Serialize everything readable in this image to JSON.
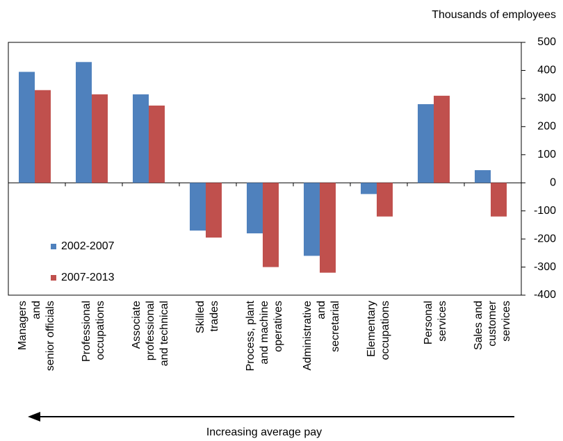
{
  "chart_data": {
    "type": "bar",
    "y_label": "Thousands of employees",
    "x_note": "Increasing average pay",
    "categories": [
      "Managers\nand\nsenior officials",
      "Professional\noccupations",
      "Associate\nprofessional\nand technical",
      "Skilled\ntrades",
      "Process, plant\nand machine\noperatives",
      "Administrative\nand\nsecretarial",
      "Elementary\noccupations",
      "Personal\nservices",
      "Sales and\ncustomer\nservices"
    ],
    "series": [
      {
        "name": "2002-2007",
        "color": "#4f81bd",
        "values": [
          395,
          430,
          315,
          -170,
          -180,
          -260,
          -40,
          280,
          45
        ]
      },
      {
        "name": "2007-2013",
        "color": "#c0504d",
        "values": [
          330,
          315,
          275,
          -195,
          -300,
          -320,
          -120,
          310,
          -120
        ]
      }
    ],
    "ylim": [
      -400,
      500
    ],
    "yticks": [
      -400,
      -300,
      -200,
      -100,
      0,
      100,
      200,
      300,
      400,
      500
    ],
    "legend": "lower left"
  }
}
